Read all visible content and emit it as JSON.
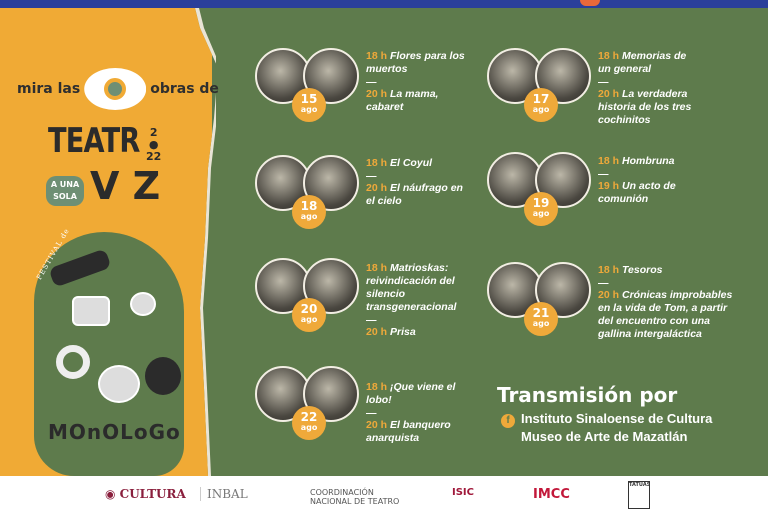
{
  "header": {
    "icon": "gobierno-icon"
  },
  "branding": {
    "mira_prefix": "mira las",
    "mira_suffix": "obras de",
    "teatro": "TEATR",
    "year_top": "2",
    "year_bottom": "22",
    "a_una": "A UNA",
    "sola": "SOLA",
    "voz": "V Z",
    "festival": "FESTIVAL de",
    "monologo": "MOnOLoGo"
  },
  "colors": {
    "green": "#5e7b4c",
    "orange": "#f0aa35",
    "blue": "#2a3f9a"
  },
  "events": [
    {
      "day": "15",
      "month": "ago",
      "shows": [
        {
          "time": "18 h",
          "title": "Flores para los muertos"
        },
        {
          "time": "20 h",
          "title": "La mama, cabaret"
        }
      ]
    },
    {
      "day": "17",
      "month": "ago",
      "shows": [
        {
          "time": "18 h",
          "title": "Memorias de un general"
        },
        {
          "time": "20 h",
          "title": "La verdadera historia de los tres cochinitos"
        }
      ]
    },
    {
      "day": "18",
      "month": "ago",
      "shows": [
        {
          "time": "18 h",
          "title": "El Coyul"
        },
        {
          "time": "20 h",
          "title": "El náufrago en el cielo"
        }
      ]
    },
    {
      "day": "19",
      "month": "ago",
      "shows": [
        {
          "time": "18 h",
          "title": "Hombruna"
        },
        {
          "time": "19 h",
          "title": "Un acto de comunión"
        }
      ]
    },
    {
      "day": "20",
      "month": "ago",
      "shows": [
        {
          "time": "18 h",
          "title": "Matrioskas: reivindicación del silencio transgeneracional"
        },
        {
          "time": "20 h",
          "title": "Prisa"
        }
      ]
    },
    {
      "day": "21",
      "month": "ago",
      "shows": [
        {
          "time": "18 h",
          "title": "Tesoros"
        },
        {
          "time": "20 h",
          "title": "Crónicas improbables en la vida de Tom, a partir del encuentro con una gallina intergaláctica"
        }
      ]
    },
    {
      "day": "22",
      "month": "ago",
      "shows": [
        {
          "time": "18 h",
          "title": "¡Que viene el lobo!"
        },
        {
          "time": "20 h",
          "title": "El banquero anarquista"
        }
      ]
    }
  ],
  "separator": "—",
  "transmission": {
    "title": "Transmisión por",
    "icon": "facebook-icon",
    "line1": "Instituto Sinaloense de Cultura",
    "line2": "Museo de Arte de Mazatlán"
  },
  "footer": {
    "cultura": "CULTURA",
    "inbal": "INBAL",
    "cnt1": "COORDINACIÓN",
    "cnt2": "NACIONAL DE TEATRO",
    "isic": "ISIC",
    "imcc": "IMCC",
    "tatuas": "TATUAS"
  }
}
